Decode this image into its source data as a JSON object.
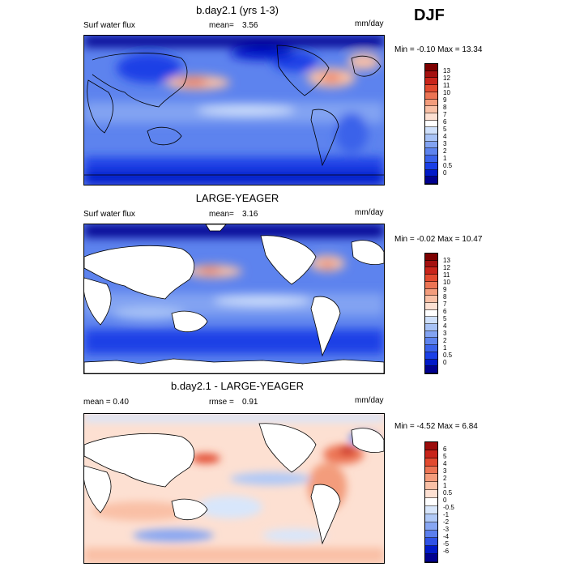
{
  "season": "DJF",
  "colors": {
    "absolute": [
      "#00008f",
      "#0019c8",
      "#1a3fe6",
      "#3a62ea",
      "#5d83ee",
      "#82a3f2",
      "#a7c2f6",
      "#cfe0fb",
      "#ffffff",
      "#fde0d2",
      "#f9c0a6",
      "#f39c7c",
      "#ec7454",
      "#e24a2f",
      "#c8241a",
      "#a4100f",
      "#7d0000"
    ],
    "difference": [
      "#00008f",
      "#0019c8",
      "#2f52e6",
      "#5b7fee",
      "#87a6f3",
      "#b0c9f7",
      "#d8e6fb",
      "#ffffff",
      "#fde0d2",
      "#f9c0a6",
      "#f39c7c",
      "#ec7454",
      "#e24a2f",
      "#c8241a",
      "#9b0c0b"
    ]
  },
  "panels": [
    {
      "title": "b.day2.1 (yrs 1-3)",
      "left_label": "Surf water flux",
      "mean_label": "mean=",
      "mean_value": "3.56",
      "units": "mm/day",
      "minmax_label": "Min =  -0.10 Max =  13.34",
      "colorbar_labels": [
        "13",
        "12",
        "11",
        "10",
        "9",
        "8",
        "7",
        "6",
        "5",
        "4",
        "3",
        "2",
        "1",
        "0.5",
        "0"
      ],
      "land": "filled"
    },
    {
      "title": "LARGE-YEAGER",
      "left_label": "Surf water flux",
      "mean_label": "mean=",
      "mean_value": "3.16",
      "units": "mm/day",
      "minmax_label": "Min =  -0.02 Max =  10.47",
      "colorbar_labels": [
        "13",
        "12",
        "11",
        "10",
        "9",
        "8",
        "7",
        "6",
        "5",
        "4",
        "3",
        "2",
        "1",
        "0.5",
        "0"
      ],
      "land": "masked"
    },
    {
      "title": "b.day2.1 - LARGE-YEAGER",
      "left_label": "mean =   0.40",
      "mean_label": "rmse =",
      "mean_value": "0.91",
      "units": "mm/day",
      "minmax_label": "Min =  -4.52 Max =  6.84",
      "colorbar_labels": [
        "6",
        "5",
        "4",
        "3",
        "2",
        "1",
        "0.5",
        "0",
        "-0.5",
        "-1",
        "-2",
        "-3",
        "-4",
        "-5",
        "-6"
      ],
      "land": "masked"
    }
  ]
}
